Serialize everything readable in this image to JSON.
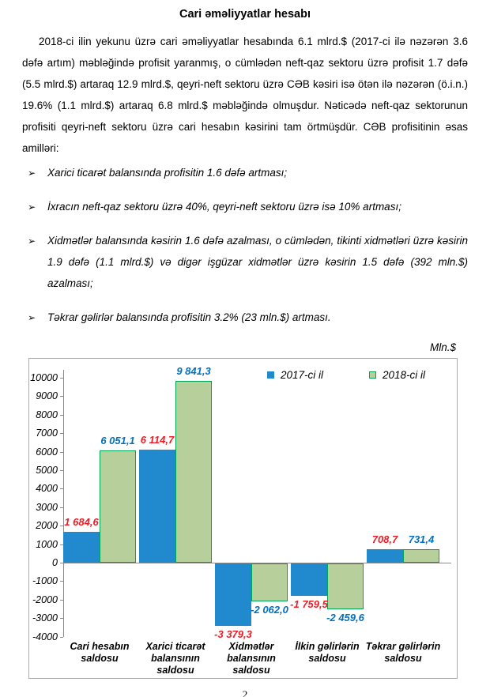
{
  "title": "Cari əməliyyatlar hesabı",
  "paragraph": "2018-ci ilin yekunu üzrə cari əməliyyatlar hesabında 6.1 mlrd.$ (2017-ci ilə nəzərən 3.6 dəfə artım) məbləğində profisit yaranmış, o cümlədən neft-qaz sektoru üzrə profisit 1.7 dəfə (5.5 mlrd.$) artaraq 12.9 mlrd.$, qeyri-neft sektoru üzrə CƏB kəsiri isə ötən ilə nəzərən (ö.i.n.) 19.6% (1.1 mlrd.$) artaraq 6.8 mlrd.$ məbləğində olmuşdur. Nəticədə neft-qaz sektorunun profisiti qeyri-neft sektoru üzrə cari hesabın kəsirini tam örtmüşdür. CƏB profisitinin əsas amilləri:",
  "bullet_marker": "➢",
  "bullets": [
    "Xarici ticarət balansında profisitin 1.6 dəfə artması;",
    "İxracın neft-qaz sektoru üzrə 40%, qeyri-neft sektoru üzrə isə 10% artması;",
    "Xidmətlər balansında kəsirin 1.6 dəfə azalması, o cümlədən, tikinti xidmətləri üzrə kəsirin 1.9 dəfə (1.1 mlrd.$) və digər işgüzar xidmətlər üzrə kəsirin 1.5 dəfə (392 mln.$) azalması;",
    "Təkrar gəlirlər balansında profisitin 3.2% (23 mln.$) artması."
  ],
  "page_number": "2",
  "chart_data": {
    "type": "bar",
    "unit_label": "Mln.$",
    "title": "",
    "categories": [
      "Cari hesabın saldosu",
      "Xarici ticarət balansının saldosu",
      "Xidmətlər balansının saldosu",
      "İlkin gəlirlərin saldosu",
      "Təkrar gəlirlərin saldosu"
    ],
    "series": [
      {
        "name": "2017-ci il",
        "color": "#2189CE",
        "label_color": "#EE1C25",
        "values": [
          1684.6,
          6114.7,
          -3379.3,
          -1759.5,
          708.7
        ],
        "labels": [
          "1 684,6",
          "6 114,7",
          "-3 379,3",
          "-1 759,5",
          "708,7"
        ]
      },
      {
        "name": "2018-ci il",
        "color": "#B7CF9A",
        "border_color": "#00A651",
        "label_color": "#0070C0",
        "values": [
          6051.1,
          9841.3,
          -2062.0,
          -2459.6,
          731.4
        ],
        "labels": [
          "6 051,1",
          "9 841,3",
          "-2 062,0",
          "-2 459,6",
          "731,4"
        ]
      }
    ],
    "y_axis": {
      "min": -4000,
      "max": 10000,
      "step": 1000
    },
    "legend_position": "top-right",
    "grid": false
  }
}
